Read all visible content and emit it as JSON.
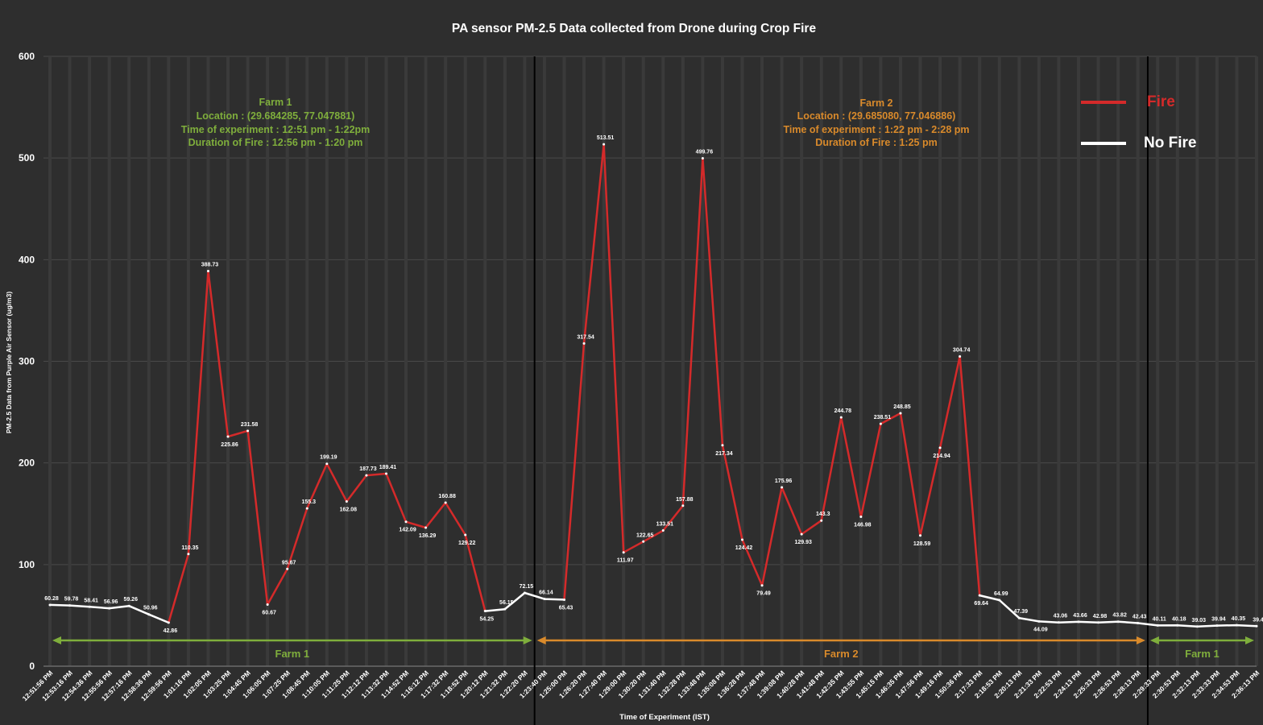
{
  "chart_data": {
    "type": "line",
    "title": "PA sensor PM-2.5 Data collected from Drone during Crop Fire",
    "xlabel": "Time of  Experiment (IST)",
    "ylabel": "PM-2.5 Data from Purple Air Sensor (ug/m3)",
    "ylim": [
      0,
      600
    ],
    "yticks": [
      "0",
      "100",
      "200",
      "300",
      "400",
      "500",
      "600"
    ],
    "grid": true,
    "legend_position": "top-right",
    "legend": [
      {
        "name": "Fire",
        "color": "#d42a2a"
      },
      {
        "name": "No Fire",
        "color": "#ffffff"
      }
    ],
    "categories": [
      "12:51:56 PM",
      "12:53:16 PM",
      "12:54:36 PM",
      "12:55:56 PM",
      "12:57:16 PM",
      "12:58:36 PM",
      "12:59:56 PM",
      "1:01:16 PM",
      "1:02:05 PM",
      "1:03:25 PM",
      "1:04:45 PM",
      "1:06:05 PM",
      "1:07:25 PM",
      "1:08:45 PM",
      "1:10:05 PM",
      "1:11:25 PM",
      "1:12:12 PM",
      "1:13:32 PM",
      "1:14:52 PM",
      "1:16:12 PM",
      "1:17:32 PM",
      "1:18:52 PM",
      "1:20:12 PM",
      "1:21:32 PM",
      "1:22:20 PM",
      "1:23:40 PM",
      "1:25:00 PM",
      "1:26:20 PM",
      "1:27:40 PM",
      "1:29:00 PM",
      "1:30:20 PM",
      "1:31:40 PM",
      "1:32:28 PM",
      "1:33:48 PM",
      "1:35:08 PM",
      "1:36:28 PM",
      "1:37:48 PM",
      "1:39:08 PM",
      "1:40:28 PM",
      "1:41:48 PM",
      "1:42:35 PM",
      "1:43:55 PM",
      "1:45:15 PM",
      "1:46:35 PM",
      "1:47:56 PM",
      "1:49:16 PM",
      "1:50:36 PM",
      "2:17:33 PM",
      "2:18:53 PM",
      "2:20:13 PM",
      "2:21:33 PM",
      "2:22:53 PM",
      "2:24:13 PM",
      "2:25:33 PM",
      "2:26:53 PM",
      "2:28:13 PM",
      "2:29:33 PM",
      "2:30:53 PM",
      "2:32:13 PM",
      "2:33:33 PM",
      "2:34:53 PM",
      "2:36:13 PM"
    ],
    "values": [
      60.28,
      59.78,
      58.41,
      56.96,
      59.26,
      50.96,
      42.86,
      110.35,
      388.73,
      225.86,
      231.58,
      60.67,
      95.67,
      155.3,
      199.19,
      162.08,
      187.73,
      189.41,
      142.09,
      136.29,
      160.88,
      129.22,
      54.25,
      56.15,
      72.15,
      66.14,
      65.43,
      317.54,
      513.51,
      111.97,
      122.65,
      133.51,
      157.88,
      499.76,
      217.34,
      124.42,
      79.49,
      175.96,
      129.93,
      143.3,
      244.78,
      146.98,
      238.51,
      248.85,
      128.59,
      214.94,
      304.74,
      69.64,
      64.99,
      47.39,
      44.09,
      43.06,
      43.66,
      42.98,
      43.82,
      42.43,
      40.11,
      40.18,
      39.03,
      39.94,
      40.35,
      39.4
    ],
    "data_labels": [
      "60.28",
      "59.78",
      "58.41",
      "56.96",
      "59.26",
      "50.96",
      "42.86",
      "110.35",
      "388.73",
      "225.86",
      "231.58",
      "60.67",
      "95.67",
      "155.3",
      "199.19",
      "162.08",
      "187.73",
      "189.41",
      "142.09",
      "136.29",
      "160.88",
      "129.22",
      "54.25",
      "56.15",
      "72.15",
      "66.14",
      "65.43",
      "317.54",
      "513.51",
      "111.97",
      "122.65",
      "133.51",
      "157.88",
      "499.76",
      "217.34",
      "124.42",
      "79.49",
      "175.96",
      "129.93",
      "143.3",
      "244.78",
      "146.98",
      "238.51",
      "248.85",
      "128.59",
      "214.94",
      "304.74",
      "69.64",
      "64.99",
      "47.39",
      "44.09",
      "43.06",
      "43.66",
      "42.98",
      "43.82",
      "42.43",
      "40.11",
      "40.18",
      "39.03",
      "39.94",
      "40.35",
      "39.4"
    ],
    "label_side": [
      "a",
      "a",
      "a",
      "a",
      "a",
      "a",
      "b",
      "a",
      "a",
      "b",
      "a",
      "b",
      "a",
      "a",
      "a",
      "b",
      "a",
      "a",
      "b",
      "b",
      "a",
      "b",
      "b",
      "a",
      "a",
      "a",
      "b",
      "a",
      "a",
      "b",
      "a",
      "a",
      "a",
      "a",
      "b",
      "b",
      "b",
      "a",
      "b",
      "a",
      "a",
      "b",
      "a",
      "a",
      "b",
      "b",
      "a",
      "b",
      "a",
      "a",
      "b",
      "a",
      "a",
      "a",
      "a",
      "a",
      "a",
      "a",
      "a",
      "a",
      "a",
      "a"
    ],
    "segments": [
      {
        "name": "No Fire",
        "from": 0,
        "to": 6
      },
      {
        "name": "Fire",
        "from": 6,
        "to": 22
      },
      {
        "name": "No Fire",
        "from": 22,
        "to": 26
      },
      {
        "name": "Fire",
        "from": 26,
        "to": 47
      },
      {
        "name": "No Fire",
        "from": 47,
        "to": 61
      }
    ],
    "dividers": [
      24.5,
      55.5
    ],
    "regions": [
      {
        "label": "Farm 1",
        "from": 0,
        "to": 24.5,
        "color": "#7fae3c"
      },
      {
        "label": "Farm 2",
        "from": 24.5,
        "to": 55.5,
        "color": "#d98a2b"
      },
      {
        "label": "Farm 1",
        "from": 55.5,
        "to": 61,
        "color": "#7fae3c"
      }
    ]
  },
  "annotations": {
    "farm1": {
      "lines": [
        "Farm 1",
        "Location : (29.684285, 77.047881)",
        "Time of experiment : 12:51 pm - 1:22pm",
        "Duration of Fire : 12:56 pm - 1:20 pm"
      ],
      "color": "#7fae3c"
    },
    "farm2": {
      "lines": [
        "Farm 2",
        "Location : (29.685080, 77.046886)",
        "Time of experiment : 1:22 pm - 2:28 pm",
        "Duration of Fire : 1:25 pm"
      ],
      "color": "#d98a2b"
    }
  }
}
